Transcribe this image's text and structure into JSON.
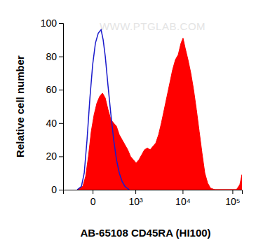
{
  "chart_data": {
    "type": "area",
    "x_label": "AB-65108 CD45RA (HI100)",
    "y_label": "Relative cell number",
    "annotations": [
      "WWW.PTGLAB.COM"
    ],
    "log": "x",
    "xlim": [
      -470,
      155000
    ],
    "xticks": [
      0,
      {
        "value": 1000,
        "label": "10³"
      },
      {
        "value": 10000,
        "label": "10⁴"
      },
      {
        "value": 100000,
        "label": "10⁵"
      }
    ],
    "ylim": [
      0,
      100
    ],
    "yticks": [
      0,
      20,
      40,
      60,
      80,
      100
    ],
    "grid": false,
    "series": [
      {
        "type": "area",
        "color": "#ff0000",
        "x": [
          -168,
          -93,
          -62,
          -35,
          -11,
          11,
          35,
          62,
          93,
          128,
          168,
          214,
          265,
          324,
          391,
          467,
          554,
          653,
          765,
          892,
          1037,
          1203,
          1390,
          1604,
          1847,
          2124,
          2437,
          2795,
          3202,
          3664,
          4191,
          4789,
          5470,
          6245,
          7125,
          8127,
          9267,
          10200,
          11280,
          12850,
          14640,
          16670,
          18990,
          21620,
          24610,
          28020,
          31900,
          36300,
          44080,
          120000,
          140000,
          155000
        ],
        "values": [
          0,
          2,
          8,
          20,
          35,
          45,
          52,
          56,
          58,
          55,
          48,
          42,
          40,
          38,
          33,
          30,
          27,
          24,
          20,
          18,
          16,
          18,
          21,
          24,
          25,
          24,
          26,
          28,
          33,
          40,
          48,
          56,
          64,
          72,
          78,
          81,
          88,
          91,
          85,
          78,
          70,
          60,
          48,
          35,
          22,
          10,
          4,
          1,
          0,
          0,
          3,
          9
        ]
      },
      {
        "type": "line",
        "color": "#1a1acc",
        "x": [
          -168,
          -110,
          -77,
          -48,
          -22,
          0,
          22,
          48,
          77,
          101,
          128,
          168,
          214,
          265,
          324,
          391,
          467,
          554,
          707
        ],
        "values": [
          0,
          2,
          10,
          30,
          55,
          75,
          88,
          94,
          96,
          90,
          80,
          62,
          45,
          30,
          18,
          10,
          5,
          2,
          0
        ]
      }
    ]
  }
}
